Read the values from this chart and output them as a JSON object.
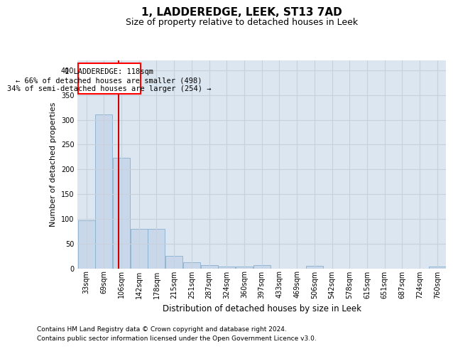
{
  "title": "1, LADDEREDGE, LEEK, ST13 7AD",
  "subtitle": "Size of property relative to detached houses in Leek",
  "xlabel": "Distribution of detached houses by size in Leek",
  "ylabel": "Number of detached properties",
  "footer_line1": "Contains HM Land Registry data © Crown copyright and database right 2024.",
  "footer_line2": "Contains public sector information licensed under the Open Government Licence v3.0.",
  "bar_color": "#c8d8ea",
  "bar_edge_color": "#8ab0cc",
  "grid_color": "#c8d0dc",
  "background_color": "#dce6f0",
  "annotation_line1": "1 LADDEREDGE: 118sqm",
  "annotation_line2": "← 66% of detached houses are smaller (498)",
  "annotation_line3": "34% of semi-detached houses are larger (254) →",
  "red_line_color": "#cc0000",
  "categories": [
    "33sqm",
    "69sqm",
    "106sqm",
    "142sqm",
    "178sqm",
    "215sqm",
    "251sqm",
    "287sqm",
    "324sqm",
    "360sqm",
    "397sqm",
    "433sqm",
    "469sqm",
    "506sqm",
    "542sqm",
    "578sqm",
    "615sqm",
    "651sqm",
    "687sqm",
    "724sqm",
    "760sqm"
  ],
  "values": [
    97,
    311,
    224,
    80,
    80,
    25,
    12,
    6,
    3,
    3,
    6,
    0,
    0,
    5,
    0,
    0,
    0,
    0,
    0,
    0,
    3
  ],
  "ylim": [
    0,
    420
  ],
  "yticks": [
    0,
    50,
    100,
    150,
    200,
    250,
    300,
    350,
    400
  ],
  "title_fontsize": 11,
  "subtitle_fontsize": 9,
  "ylabel_fontsize": 8,
  "xlabel_fontsize": 8.5,
  "tick_fontsize": 7,
  "footer_fontsize": 6.5,
  "annot_fontsize": 7.5
}
